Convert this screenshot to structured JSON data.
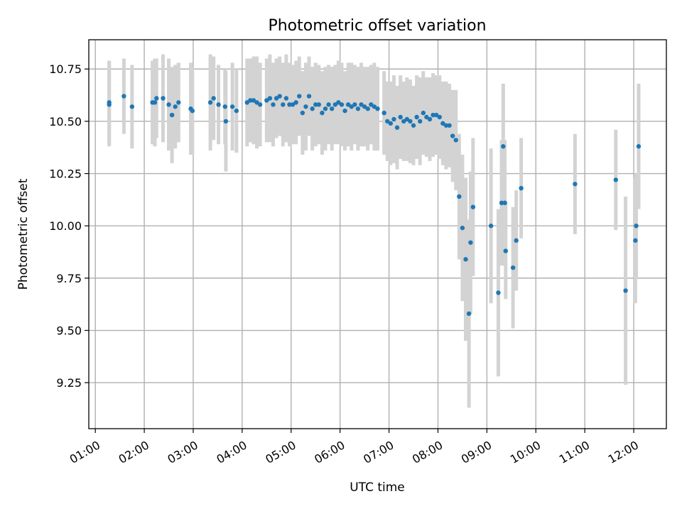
{
  "chart_data": {
    "type": "scatter",
    "title": "Photometric offset variation",
    "xlabel": "UTC time",
    "ylabel": "Photometric offset",
    "xlim": [
      "00:52",
      "12:40"
    ],
    "ylim": [
      9.03,
      10.89
    ],
    "x_ticks": [
      "01:00",
      "02:00",
      "03:00",
      "04:00",
      "05:00",
      "06:00",
      "07:00",
      "08:00",
      "09:00",
      "10:00",
      "11:00",
      "12:00"
    ],
    "y_ticks": [
      "9.25",
      "9.50",
      "9.75",
      "10.00",
      "10.25",
      "10.50",
      "10.75"
    ],
    "y_tick_values": [
      9.25,
      9.5,
      9.75,
      10.0,
      10.25,
      10.5,
      10.75
    ],
    "grid": true,
    "colors": {
      "points": "#1f77b4",
      "error_bars": "#d3d3d3",
      "grid": "#b0b0b0"
    },
    "series": [
      {
        "x": [
          "01:17",
          "01:17",
          "01:35",
          "01:45",
          "02:10",
          "02:13",
          "02:15",
          "02:23",
          "02:30",
          "02:34",
          "02:38",
          "02:42",
          "02:57",
          "02:59",
          "03:21",
          "03:25",
          "03:31",
          "03:39",
          "03:40",
          "03:48",
          "03:53",
          "04:06",
          "04:10",
          "04:14",
          "04:18",
          "04:22",
          "04:30",
          "04:34",
          "04:38",
          "04:42",
          "04:46",
          "04:50",
          "04:54",
          "04:58",
          "05:02",
          "05:06",
          "05:10",
          "05:14",
          "05:18",
          "05:22",
          "05:26",
          "05:30",
          "05:34",
          "05:38",
          "05:42",
          "05:46",
          "05:50",
          "05:54",
          "05:58",
          "06:02",
          "06:06",
          "06:10",
          "06:14",
          "06:18",
          "06:22",
          "06:26",
          "06:30",
          "06:34",
          "06:38",
          "06:42",
          "06:46",
          "06:54",
          "06:58",
          "07:02",
          "07:06",
          "07:10",
          "07:14",
          "07:18",
          "07:22",
          "07:26",
          "07:30",
          "07:34",
          "07:38",
          "07:42",
          "07:46",
          "07:50",
          "07:54",
          "07:58",
          "08:02",
          "08:06",
          "08:10",
          "08:14",
          "08:18",
          "08:22",
          "08:26",
          "08:30",
          "08:34",
          "08:38",
          "08:40",
          "08:43",
          "09:05",
          "09:14",
          "09:18",
          "09:20",
          "09:22",
          "09:23",
          "09:32",
          "09:36",
          "09:42",
          "10:48",
          "11:38",
          "11:50",
          "12:02",
          "12:03",
          "12:06"
        ],
        "y": [
          10.59,
          10.58,
          10.62,
          10.57,
          10.59,
          10.59,
          10.61,
          10.61,
          10.58,
          10.53,
          10.57,
          10.59,
          10.56,
          10.55,
          10.59,
          10.61,
          10.58,
          10.57,
          10.5,
          10.57,
          10.55,
          10.59,
          10.6,
          10.6,
          10.59,
          10.58,
          10.6,
          10.61,
          10.58,
          10.61,
          10.62,
          10.58,
          10.61,
          10.58,
          10.58,
          10.59,
          10.62,
          10.54,
          10.57,
          10.62,
          10.56,
          10.58,
          10.58,
          10.54,
          10.56,
          10.58,
          10.56,
          10.58,
          10.59,
          10.58,
          10.55,
          10.58,
          10.57,
          10.58,
          10.56,
          10.58,
          10.57,
          10.56,
          10.58,
          10.57,
          10.56,
          10.54,
          10.5,
          10.49,
          10.51,
          10.47,
          10.52,
          10.5,
          10.51,
          10.5,
          10.48,
          10.52,
          10.5,
          10.54,
          10.52,
          10.51,
          10.53,
          10.53,
          10.52,
          10.49,
          10.48,
          10.48,
          10.43,
          10.41,
          10.14,
          9.99,
          9.84,
          9.58,
          9.92,
          10.09,
          10.0,
          9.68,
          10.11,
          10.38,
          10.11,
          9.88,
          9.8,
          9.93,
          10.18,
          10.2,
          10.22,
          9.69,
          9.93,
          10.0,
          10.38
        ],
        "yerr": [
          0.2,
          0.2,
          0.18,
          0.2,
          0.2,
          0.21,
          0.19,
          0.21,
          0.22,
          0.23,
          0.2,
          0.19,
          0.22,
          0.21,
          0.23,
          0.2,
          0.19,
          0.18,
          0.24,
          0.21,
          0.2,
          0.21,
          0.2,
          0.21,
          0.22,
          0.2,
          0.2,
          0.21,
          0.2,
          0.19,
          0.19,
          0.2,
          0.21,
          0.2,
          0.19,
          0.2,
          0.19,
          0.2,
          0.21,
          0.19,
          0.2,
          0.2,
          0.19,
          0.2,
          0.2,
          0.19,
          0.2,
          0.19,
          0.2,
          0.2,
          0.19,
          0.2,
          0.21,
          0.19,
          0.2,
          0.2,
          0.19,
          0.2,
          0.19,
          0.21,
          0.2,
          0.2,
          0.19,
          0.2,
          0.21,
          0.2,
          0.2,
          0.19,
          0.2,
          0.2,
          0.19,
          0.2,
          0.21,
          0.2,
          0.19,
          0.2,
          0.2,
          0.19,
          0.2,
          0.2,
          0.21,
          0.2,
          0.22,
          0.24,
          0.3,
          0.35,
          0.39,
          0.45,
          0.34,
          0.33,
          0.37,
          0.4,
          0.3,
          0.3,
          0.3,
          0.23,
          0.29,
          0.24,
          0.24,
          0.24,
          0.24,
          0.45,
          0.3,
          0.25,
          0.3
        ]
      }
    ]
  }
}
